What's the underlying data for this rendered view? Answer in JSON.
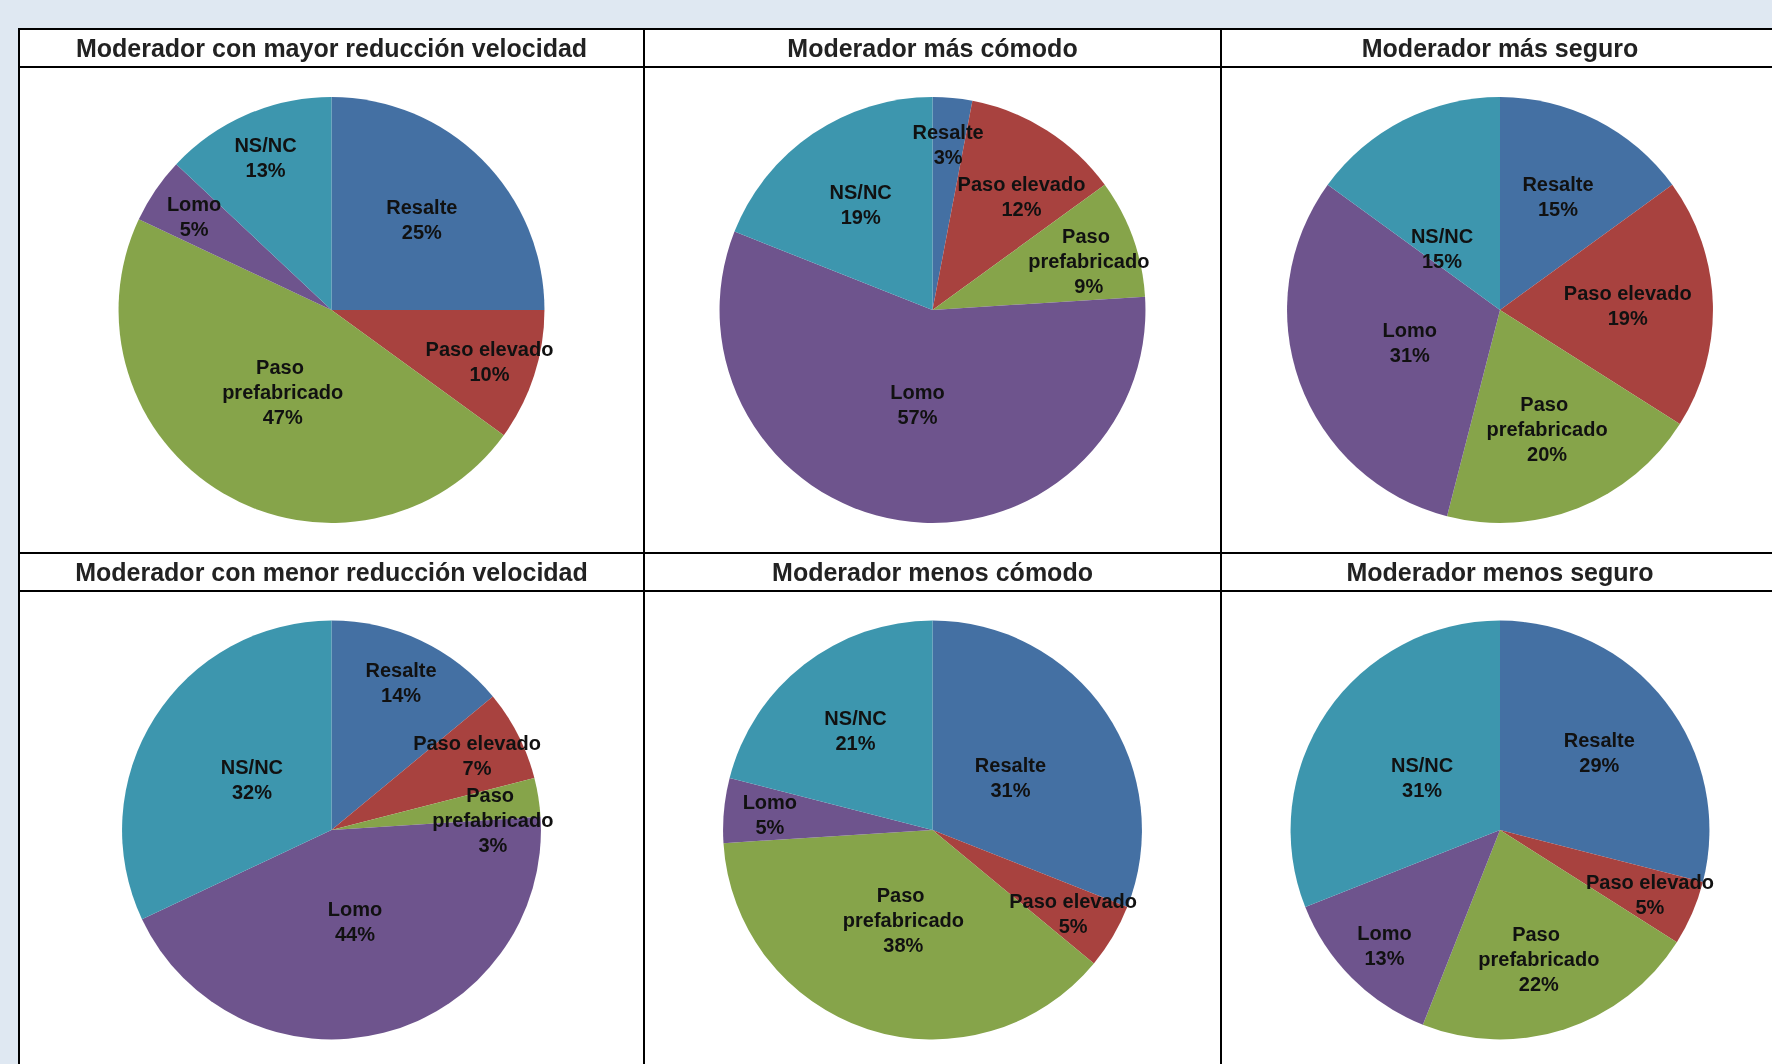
{
  "chart_data": [
    {
      "type": "pie",
      "title": "Moderador con mayor reducción velocidad",
      "categories": [
        "Resalte",
        "Paso elevado",
        "Paso prefabricado",
        "Lomo",
        "NS/NC"
      ],
      "values": [
        25,
        10,
        47,
        5,
        13
      ],
      "value_labels": [
        "25%",
        "10%",
        "47%",
        "5%",
        "13%"
      ],
      "colors": [
        "#4470a3",
        "#a8423f",
        "#86a44a",
        "#6e548d",
        "#3d96ae"
      ],
      "legend": false
    },
    {
      "type": "pie",
      "title": "Moderador más cómodo",
      "categories": [
        "Resalte",
        "Paso elevado",
        "Paso prefabricado",
        "Lomo",
        "NS/NC"
      ],
      "values": [
        3,
        12,
        9,
        57,
        19
      ],
      "value_labels": [
        "3%",
        "12%",
        "9%",
        "57%",
        "19%"
      ],
      "colors": [
        "#4470a3",
        "#a8423f",
        "#86a44a",
        "#6e548d",
        "#3d96ae"
      ],
      "legend": false
    },
    {
      "type": "pie",
      "title": "Moderador más seguro",
      "categories": [
        "Resalte",
        "Paso elevado",
        "Paso prefabricado",
        "Lomo",
        "NS/NC"
      ],
      "values": [
        15,
        19,
        20,
        31,
        15
      ],
      "value_labels": [
        "15%",
        "19%",
        "20%",
        "31%",
        "15%"
      ],
      "colors": [
        "#4470a3",
        "#a8423f",
        "#86a44a",
        "#6e548d",
        "#3d96ae"
      ],
      "legend": false
    },
    {
      "type": "pie",
      "title": "Moderador con menor reducción velocidad",
      "categories": [
        "Resalte",
        "Paso elevado",
        "Paso prefabricado",
        "Lomo",
        "NS/NC"
      ],
      "values": [
        14,
        7,
        3,
        44,
        32
      ],
      "value_labels": [
        "14%",
        "7%",
        "3%",
        "44%",
        "32%"
      ],
      "colors": [
        "#4470a3",
        "#a8423f",
        "#86a44a",
        "#6e548d",
        "#3d96ae"
      ],
      "legend": false
    },
    {
      "type": "pie",
      "title": "Moderador menos cómodo",
      "categories": [
        "Resalte",
        "Paso elevado",
        "Paso prefabricado",
        "Lomo",
        "NS/NC"
      ],
      "values": [
        31,
        5,
        38,
        5,
        21
      ],
      "value_labels": [
        "31%",
        "5%",
        "38%",
        "5%",
        "21%"
      ],
      "colors": [
        "#4470a3",
        "#a8423f",
        "#86a44a",
        "#6e548d",
        "#3d96ae"
      ],
      "legend": false
    },
    {
      "type": "pie",
      "title": "Moderador menos seguro",
      "categories": [
        "Resalte",
        "Paso elevado",
        "Paso prefabricado",
        "Lomo",
        "NS/NC"
      ],
      "values": [
        29,
        5,
        22,
        13,
        31
      ],
      "value_labels": [
        "29%",
        "5%",
        "22%",
        "13%",
        "31%"
      ],
      "colors": [
        "#4470a3",
        "#a8423f",
        "#86a44a",
        "#6e548d",
        "#3d96ae"
      ],
      "legend": false
    }
  ]
}
